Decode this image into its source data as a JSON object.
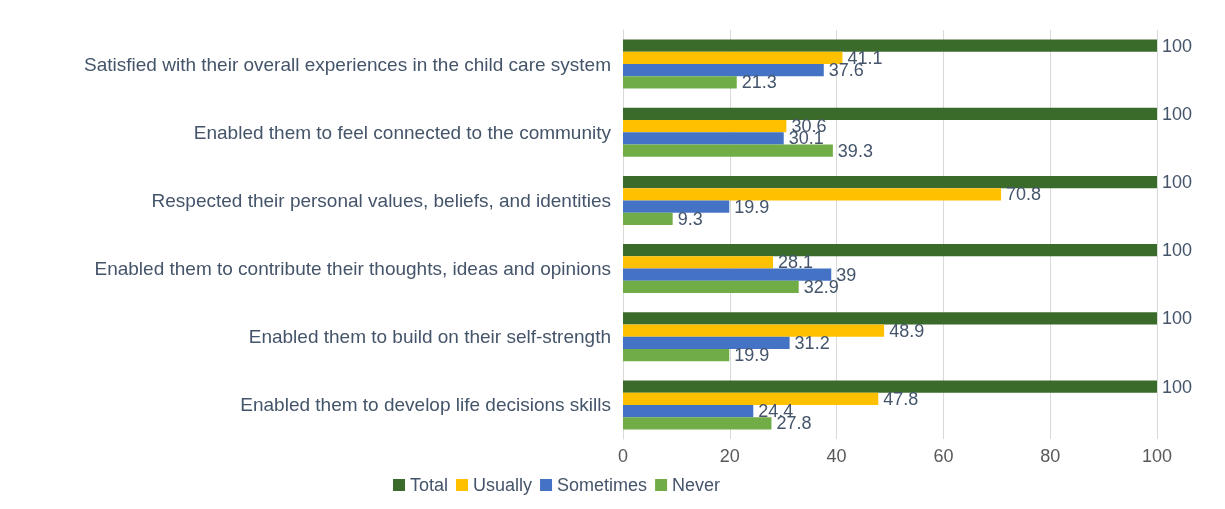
{
  "chart_data": {
    "type": "bar",
    "orientation": "horizontal",
    "categories": [
      "Satisfied with their overall experiences in the child care system",
      "Enabled them to feel connected to the community",
      "Respected their personal values, beliefs, and identities",
      "Enabled them to contribute their thoughts, ideas and opinions",
      "Enabled them to build on their self-strength",
      "Enabled them to develop life decisions skills"
    ],
    "series": [
      {
        "name": "Total",
        "color": "#3b6b2b",
        "values": [
          100,
          100,
          100,
          100,
          100,
          100
        ]
      },
      {
        "name": "Usually",
        "color": "#ffc000",
        "values": [
          41.1,
          30.6,
          70.8,
          28.1,
          48.9,
          47.8
        ]
      },
      {
        "name": "Sometimes",
        "color": "#4472c4",
        "values": [
          37.6,
          30.1,
          19.9,
          39,
          31.2,
          24.4
        ]
      },
      {
        "name": "Never",
        "color": "#70ad47",
        "values": [
          21.3,
          39.3,
          9.3,
          32.9,
          19.9,
          27.8
        ]
      }
    ],
    "xlim": [
      0,
      100
    ],
    "xticks": [
      0,
      20,
      40,
      60,
      80,
      100
    ],
    "grid": "x",
    "legend": "bottom",
    "data_labels": true
  }
}
